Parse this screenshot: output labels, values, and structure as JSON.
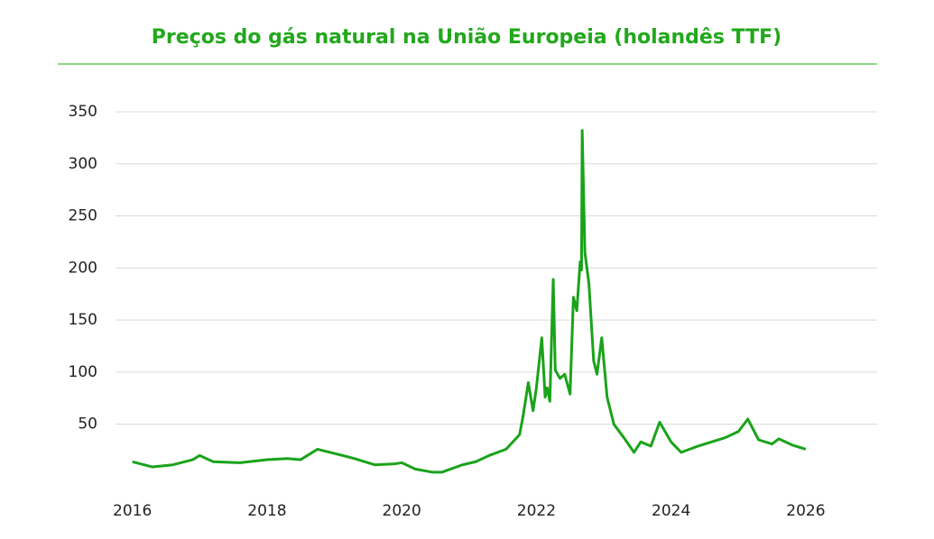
{
  "chart_data": {
    "type": "line",
    "title": "Preços do gás natural na União Europeia (holandês TTF)",
    "color": "#1aa31a",
    "x": [
      2016.0,
      2016.3,
      2016.6,
      2016.9,
      2017.0,
      2017.2,
      2017.6,
      2018.0,
      2018.3,
      2018.5,
      2018.75,
      2019.0,
      2019.3,
      2019.6,
      2019.9,
      2020.0,
      2020.2,
      2020.45,
      2020.6,
      2020.9,
      2021.1,
      2021.3,
      2021.55,
      2021.75,
      2021.8,
      2021.88,
      2021.95,
      2022.0,
      2022.08,
      2022.13,
      2022.16,
      2022.2,
      2022.25,
      2022.28,
      2022.35,
      2022.42,
      2022.5,
      2022.55,
      2022.6,
      2022.65,
      2022.67,
      2022.68,
      2022.72,
      2022.78,
      2022.85,
      2022.9,
      2022.97,
      2023.05,
      2023.15,
      2023.3,
      2023.45,
      2023.55,
      2023.7,
      2023.83,
      2024.0,
      2024.15,
      2024.4,
      2024.6,
      2024.8,
      2025.0,
      2025.14,
      2025.3,
      2025.5,
      2025.6,
      2025.8,
      2026.0
    ],
    "values": [
      14,
      9,
      11,
      16,
      20,
      14,
      13,
      16,
      17,
      16,
      26,
      22,
      17,
      11,
      12,
      13,
      7,
      4,
      4,
      11,
      14,
      20,
      26,
      40,
      57,
      90,
      63,
      85,
      133,
      76,
      85,
      72,
      189,
      102,
      94,
      98,
      79,
      172,
      159,
      206,
      198,
      332,
      215,
      185,
      111,
      98,
      133,
      76,
      50,
      37,
      23,
      33,
      29,
      52,
      33,
      23,
      29,
      33,
      37,
      43,
      55,
      35,
      31,
      36,
      30,
      26
    ],
    "xlim": [
      2015.75,
      2027.06
    ],
    "xticks": [
      2016,
      2018,
      2020,
      2022,
      2024,
      2026
    ],
    "ylim": [
      -10,
      350
    ],
    "yticks": [
      50,
      100,
      150,
      200,
      250,
      300,
      350
    ],
    "grid": true
  }
}
